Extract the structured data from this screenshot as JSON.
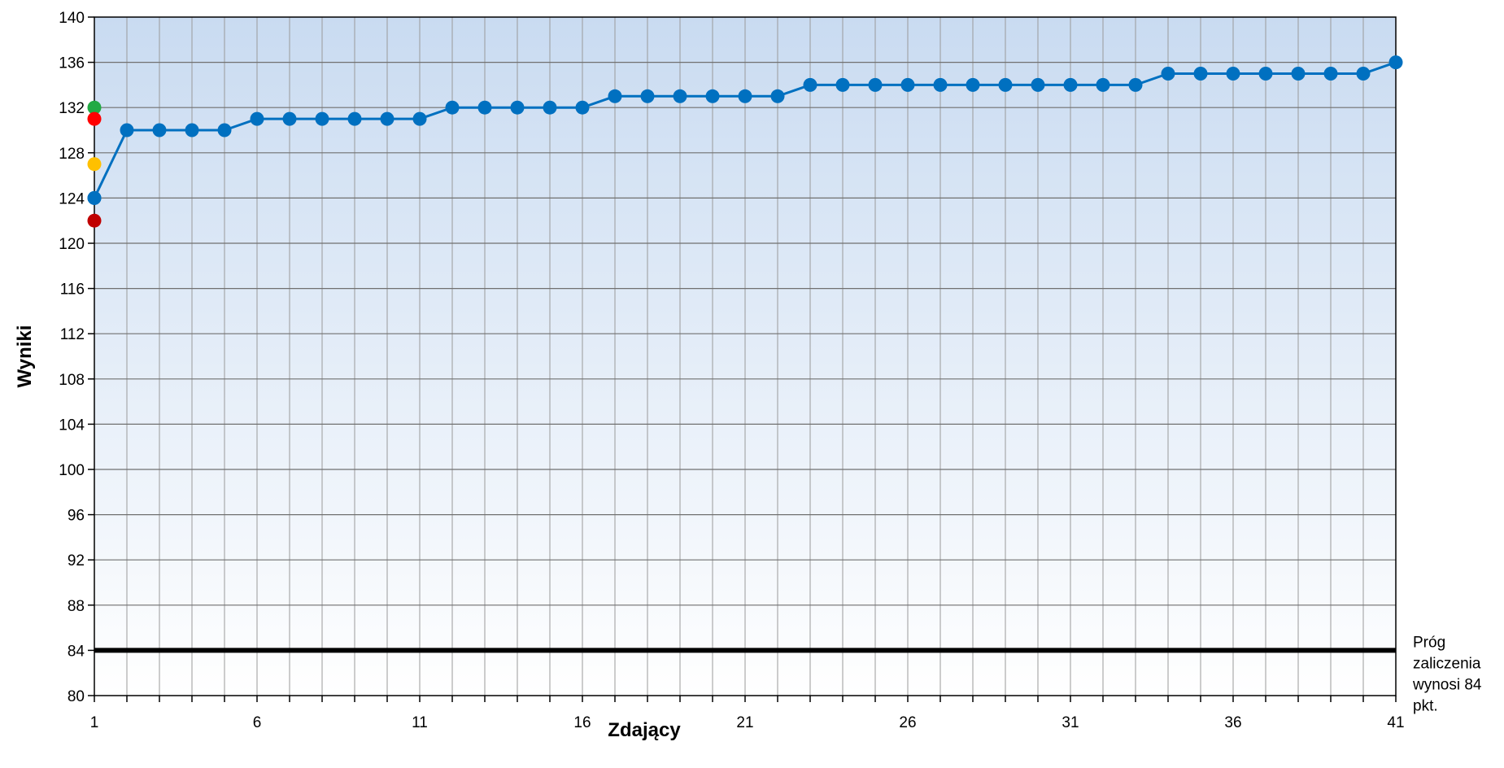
{
  "chart_data": {
    "type": "line",
    "title": "",
    "xlabel": "Zdający",
    "ylabel": "Wyniki",
    "xlim": [
      1,
      41
    ],
    "ylim": [
      80,
      140
    ],
    "x_ticks": [
      1,
      6,
      11,
      16,
      21,
      26,
      31,
      36,
      41
    ],
    "y_ticks": [
      80,
      84,
      88,
      92,
      96,
      100,
      104,
      108,
      112,
      116,
      120,
      124,
      128,
      132,
      136,
      140
    ],
    "grid": true,
    "legend": "none",
    "series": [
      {
        "color": "#0070C0",
        "x": [
          1,
          2,
          3,
          4,
          5,
          6,
          7,
          8,
          9,
          10,
          11,
          12,
          13,
          14,
          15,
          16,
          17,
          18,
          19,
          20,
          21,
          22,
          23,
          24,
          25,
          26,
          27,
          28,
          29,
          30,
          31,
          32,
          33,
          34,
          35,
          36,
          37,
          38,
          39,
          40,
          41
        ],
        "values": [
          124,
          130,
          130,
          130,
          130,
          131,
          131,
          131,
          131,
          131,
          131,
          132,
          132,
          132,
          132,
          132,
          133,
          133,
          133,
          133,
          133,
          133,
          134,
          134,
          134,
          134,
          134,
          134,
          134,
          134,
          134,
          134,
          134,
          135,
          135,
          135,
          135,
          135,
          135,
          135,
          136
        ]
      }
    ],
    "markers": [
      {
        "x": 1,
        "y": 132,
        "color": "#22AA44"
      },
      {
        "x": 1,
        "y": 131,
        "color": "#FF0000"
      },
      {
        "x": 1,
        "y": 127,
        "color": "#FFC000"
      },
      {
        "x": 1,
        "y": 122,
        "color": "#C00000"
      }
    ],
    "threshold": {
      "value": 84,
      "color": "#000000",
      "label_lines": [
        "Próg",
        "zaliczenia",
        "wynosi 84",
        "pkt."
      ]
    }
  }
}
